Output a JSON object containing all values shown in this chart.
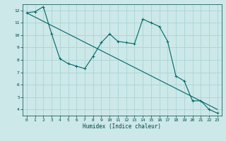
{
  "xlabel": "Humidex (Indice chaleur)",
  "bg_color": "#cce8e8",
  "grid_color": "#aad4d4",
  "line_color": "#006666",
  "xlim": [
    -0.5,
    23.5
  ],
  "ylim": [
    3.5,
    12.5
  ],
  "yticks": [
    4,
    5,
    6,
    7,
    8,
    9,
    10,
    11,
    12
  ],
  "xticks": [
    0,
    1,
    2,
    3,
    4,
    5,
    6,
    7,
    8,
    9,
    10,
    11,
    12,
    13,
    14,
    15,
    16,
    17,
    18,
    19,
    20,
    21,
    22,
    23
  ],
  "curve1_x": [
    0,
    1,
    2,
    3,
    4,
    5,
    6,
    7,
    8,
    9,
    10,
    11,
    12,
    13,
    14,
    15,
    16,
    17,
    18,
    19,
    20,
    21,
    22,
    23
  ],
  "curve1_y": [
    11.8,
    11.9,
    12.3,
    10.1,
    8.1,
    7.7,
    7.5,
    7.3,
    8.3,
    9.4,
    10.1,
    9.5,
    9.4,
    9.3,
    11.3,
    11.0,
    10.7,
    9.5,
    6.7,
    6.3,
    4.7,
    4.7,
    4.0,
    3.7
  ],
  "curve2_x": [
    0,
    23
  ],
  "curve2_y": [
    11.8,
    4.0
  ],
  "marker": "+"
}
